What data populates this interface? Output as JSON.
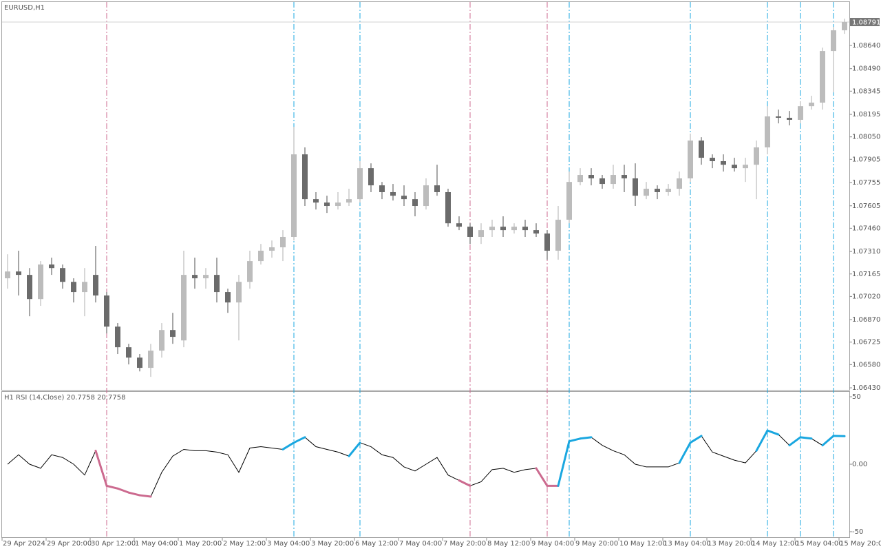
{
  "chart_data": [
    {
      "type": "candlestick",
      "title": "EURUSD,H1",
      "categories": [
        "29 Apr 2024",
        null,
        null,
        null,
        "29 Apr 20:00",
        null,
        null,
        null,
        "30 Apr 12:00",
        null,
        null,
        null,
        "1 May 04:00",
        null,
        null,
        null,
        "1 May 20:00",
        null,
        null,
        null,
        "2 May 12:00",
        null,
        null,
        null,
        "3 May 04:00",
        null,
        null,
        null,
        "3 May 20:00",
        null,
        null,
        null,
        "6 May 12:00",
        null,
        null,
        null,
        "7 May 04:00",
        null,
        null,
        null,
        "7 May 20:00",
        null,
        null,
        null,
        "8 May 12:00",
        null,
        null,
        null,
        "9 May 04:00",
        null,
        null,
        null,
        "9 May 20:00",
        null,
        null,
        null,
        "10 May 12:00",
        null,
        null,
        null,
        "13 May 04:00",
        null,
        null,
        null,
        "13 May 20:00",
        null,
        null,
        null,
        "14 May 12:00",
        null,
        null,
        null,
        "15 May 04:00",
        null,
        null,
        null,
        "15 May 20:00"
      ],
      "candles": [
        [
          1.07137,
          1.07292,
          1.0707,
          1.07181
        ],
        [
          1.07181,
          1.07315,
          1.07026,
          1.07159
        ],
        [
          1.07159,
          1.07203,
          1.06892,
          1.07003
        ],
        [
          1.07003,
          1.07248,
          1.06959,
          1.07226
        ],
        [
          1.07226,
          1.0727,
          1.07159,
          1.07203
        ],
        [
          1.07203,
          1.07226,
          1.0707,
          1.07114
        ],
        [
          1.07114,
          1.07137,
          1.06981,
          1.07048
        ],
        [
          1.07048,
          1.07203,
          1.06892,
          1.07114
        ],
        [
          1.07159,
          1.07346,
          1.06981,
          1.07026
        ],
        [
          1.07026,
          1.07048,
          1.06781,
          1.06825
        ],
        [
          1.06825,
          1.06848,
          1.06648,
          1.06692
        ],
        [
          1.06692,
          1.06714,
          1.06581,
          1.06625
        ],
        [
          1.06625,
          1.06648,
          1.06536,
          1.06559
        ],
        [
          1.06559,
          1.06714,
          1.06501,
          1.0667
        ],
        [
          1.0667,
          1.06848,
          1.06625,
          1.06803
        ],
        [
          1.06803,
          1.06914,
          1.06714,
          1.06759
        ],
        [
          1.06736,
          1.07315,
          1.06692,
          1.07159
        ],
        [
          1.07159,
          1.0727,
          1.0707,
          1.07137
        ],
        [
          1.07137,
          1.07203,
          1.0707,
          1.07159
        ],
        [
          1.07159,
          1.0727,
          1.06981,
          1.07048
        ],
        [
          1.07048,
          1.0707,
          1.06914,
          1.06981
        ],
        [
          1.06981,
          1.07159,
          1.06736,
          1.07114
        ],
        [
          1.07114,
          1.07315,
          1.0707,
          1.07248
        ],
        [
          1.07248,
          1.07359,
          1.07226,
          1.07315
        ],
        [
          1.07315,
          1.07381,
          1.0727,
          1.07337
        ],
        [
          1.07337,
          1.07448,
          1.07248,
          1.07404
        ],
        [
          1.07404,
          1.08115,
          1.07381,
          1.07937
        ],
        [
          1.07937,
          1.07982,
          1.07604,
          1.07648
        ],
        [
          1.07648,
          1.07693,
          1.07581,
          1.07626
        ],
        [
          1.07626,
          1.0767,
          1.07559,
          1.07604
        ],
        [
          1.07604,
          1.07693,
          1.07581,
          1.07626
        ],
        [
          1.07626,
          1.07715,
          1.07604,
          1.07648
        ],
        [
          1.07648,
          1.07893,
          1.07626,
          1.07848
        ],
        [
          1.07848,
          1.07879,
          1.07693,
          1.07737
        ],
        [
          1.07737,
          1.07759,
          1.07648,
          1.07693
        ],
        [
          1.07693,
          1.07746,
          1.07639,
          1.0767
        ],
        [
          1.0767,
          1.07737,
          1.07604,
          1.07648
        ],
        [
          1.07648,
          1.07693,
          1.07537,
          1.07604
        ],
        [
          1.07604,
          1.07782,
          1.07581,
          1.07737
        ],
        [
          1.07737,
          1.0787,
          1.0767,
          1.07693
        ],
        [
          1.07693,
          1.07715,
          1.0747,
          1.07492
        ],
        [
          1.07492,
          1.07537,
          1.07448,
          1.0747
        ],
        [
          1.0747,
          1.07492,
          1.07359,
          1.07404
        ],
        [
          1.07404,
          1.07492,
          1.07359,
          1.07448
        ],
        [
          1.07448,
          1.07515,
          1.07404,
          1.0747
        ],
        [
          1.0747,
          1.07537,
          1.07404,
          1.07448
        ],
        [
          1.07448,
          1.07492,
          1.07426,
          1.0747
        ],
        [
          1.0747,
          1.07515,
          1.07404,
          1.07448
        ],
        [
          1.07448,
          1.07492,
          1.07404,
          1.07426
        ],
        [
          1.07426,
          1.07448,
          1.07257,
          1.07315
        ],
        [
          1.07315,
          1.07604,
          1.07257,
          1.07515
        ],
        [
          1.07515,
          1.07826,
          1.07492,
          1.07759
        ],
        [
          1.07759,
          1.07848,
          1.07737,
          1.07804
        ],
        [
          1.07804,
          1.07848,
          1.07737,
          1.07782
        ],
        [
          1.07782,
          1.07804,
          1.07715,
          1.07746
        ],
        [
          1.07746,
          1.0787,
          1.07715,
          1.07804
        ],
        [
          1.07804,
          1.0787,
          1.07693,
          1.07782
        ],
        [
          1.07782,
          1.07879,
          1.07604,
          1.0767
        ],
        [
          1.0767,
          1.07759,
          1.07648,
          1.07715
        ],
        [
          1.07715,
          1.07737,
          1.07648,
          1.07693
        ],
        [
          1.07693,
          1.07746,
          1.0767,
          1.07715
        ],
        [
          1.07715,
          1.07826,
          1.0767,
          1.07782
        ],
        [
          1.07782,
          1.08071,
          1.07759,
          1.08026
        ],
        [
          1.08026,
          1.08048,
          1.0787,
          1.07915
        ],
        [
          1.07915,
          1.07937,
          1.07848,
          1.07893
        ],
        [
          1.07893,
          1.07937,
          1.07826,
          1.0787
        ],
        [
          1.0787,
          1.07915,
          1.07826,
          1.07848
        ],
        [
          1.07848,
          1.07915,
          1.07759,
          1.0787
        ],
        [
          1.0787,
          1.08026,
          1.07648,
          1.07982
        ],
        [
          1.07982,
          1.08248,
          1.07937,
          1.08182
        ],
        [
          1.08182,
          1.08226,
          1.08137,
          1.08173
        ],
        [
          1.08173,
          1.08217,
          1.08124,
          1.0816
        ],
        [
          1.0816,
          1.0828,
          1.08137,
          1.08248
        ],
        [
          1.08248,
          1.08315,
          1.08226,
          1.08271
        ],
        [
          1.08271,
          1.08626,
          1.08226,
          1.08604
        ],
        [
          1.08604,
          1.0876,
          1.08337,
          1.08738
        ],
        [
          1.08738,
          1.08813,
          1.08715,
          1.08791
        ]
      ],
      "up_color": "#bcbcbc",
      "down_color": "#6b6b6b",
      "ylim": [
        1.06417,
        1.0892
      ],
      "yticks": [
        {
          "value": 1.0864,
          "label": "1.08640"
        },
        {
          "value": 1.0849,
          "label": "1.08490"
        },
        1.08345,
        1.08195,
        {
          "value": 1.0805,
          "label": "1.08050"
        },
        1.07905,
        1.07755,
        1.07605,
        {
          "value": 1.0746,
          "label": "1.07460"
        },
        {
          "value": 1.0731,
          "label": "1.07310"
        },
        1.07165,
        {
          "value": 1.0702,
          "label": "1.07020"
        },
        {
          "value": 1.0687,
          "label": "1.06870"
        },
        1.06725,
        {
          "value": 1.0658,
          "label": "1.06580"
        },
        {
          "value": 1.0643,
          "label": "1.06430"
        }
      ],
      "last_price": 1.08791,
      "last_price_color": "#777777"
    },
    {
      "type": "line",
      "title": "H1 RSI (14,Close) 20.7758 20.7758",
      "values": [
        0,
        7,
        0,
        -3,
        7,
        5,
        0,
        -8,
        10,
        -16,
        -18,
        -21,
        -23,
        -24,
        -6,
        6,
        11,
        10,
        10,
        9,
        7,
        -6,
        12,
        13,
        12,
        11,
        16,
        20,
        13,
        11,
        9,
        6,
        16,
        13,
        7,
        5,
        -2,
        -5,
        0,
        5,
        -8,
        -12,
        -16,
        -13,
        -4,
        -3,
        -6,
        -4,
        -3,
        -16,
        -16,
        17,
        19,
        20,
        14,
        10,
        7,
        0,
        -2,
        -2,
        -2,
        1,
        16,
        21,
        9,
        6,
        3,
        1,
        10,
        25,
        22,
        14,
        20,
        19,
        14,
        21,
        20.7758
      ],
      "color": "#000000",
      "ylim": [
        -54.1,
        53.6
      ],
      "yticks": [
        50,
        {
          "value": 0,
          "label": "0.00"
        },
        -50
      ],
      "upper_level": 15,
      "lower_level": -15,
      "upper_color": "#1aa7e0",
      "lower_color": "#cc6a8f"
    }
  ]
}
